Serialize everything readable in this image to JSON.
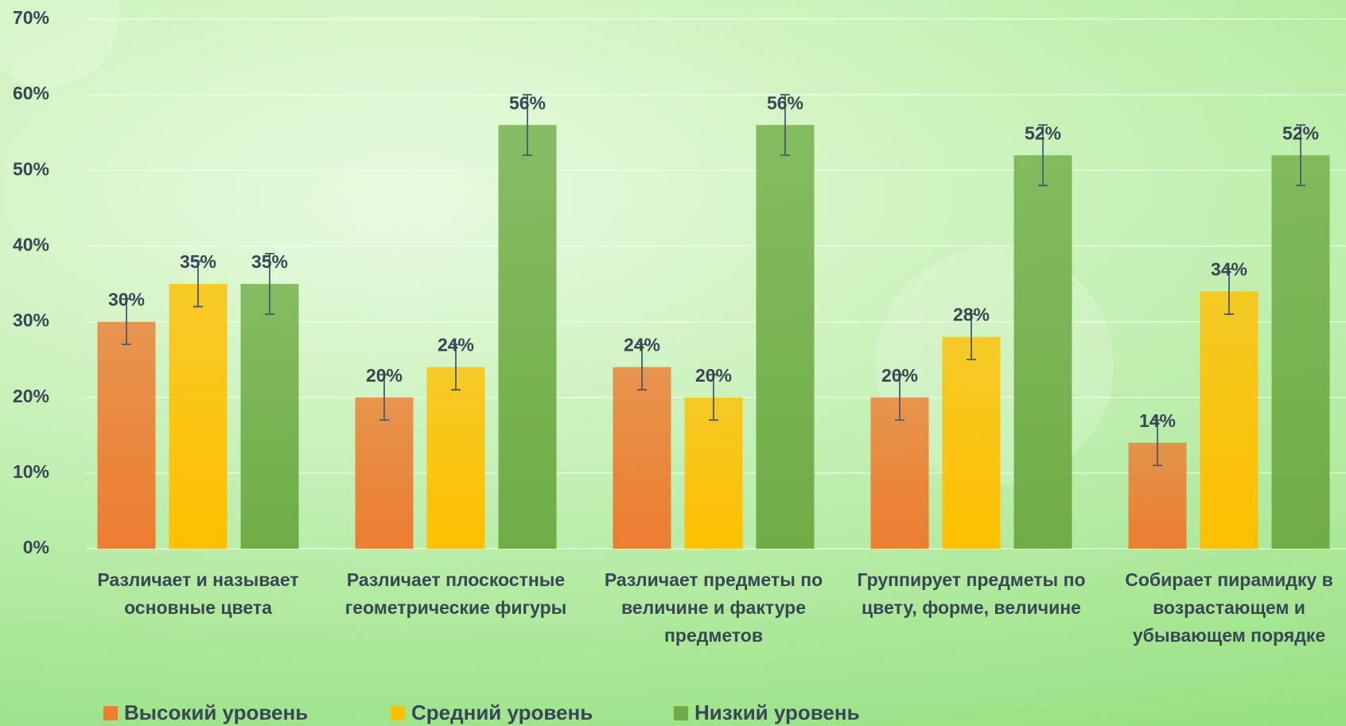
{
  "chart_data": {
    "type": "bar",
    "categories": [
      "Различает и называет основные цвета",
      "Различает плоскостные геометрические фигуры",
      "Различает предметы по величине и фактуре предметов",
      "Группирует предметы по цвету, форме, величине",
      "Собирает пирамидку в возрастающем и убывающем порядке"
    ],
    "series": [
      {
        "name": "Высокий уровень",
        "color": "#ed7d31",
        "values": [
          30,
          20,
          24,
          20,
          14
        ],
        "value_labels": [
          "30%",
          "20%",
          "24%",
          "20%",
          "14%"
        ],
        "errors": [
          3,
          3,
          3,
          3,
          3
        ]
      },
      {
        "name": "Средний уровень",
        "color": "#ffc000",
        "values": [
          35,
          24,
          20,
          28,
          34
        ],
        "value_labels": [
          "35%",
          "24%",
          "20%",
          "28%",
          "34%"
        ],
        "errors": [
          3,
          3,
          3,
          3,
          3
        ]
      },
      {
        "name": "Низкий уровень",
        "color": "#70ad47",
        "values": [
          35,
          56,
          56,
          52,
          52
        ],
        "value_labels": [
          "35%",
          "56%",
          "56%",
          "52%",
          "52%"
        ],
        "errors": [
          4,
          4,
          4,
          4,
          4
        ]
      }
    ],
    "ylim": [
      0,
      70
    ],
    "yticks": [
      {
        "value": 0,
        "label": "0%"
      },
      {
        "value": 10,
        "label": "10%"
      },
      {
        "value": 20,
        "label": "20%"
      },
      {
        "value": 30,
        "label": "30%"
      },
      {
        "value": 40,
        "label": "40%"
      },
      {
        "value": 50,
        "label": "50%"
      },
      {
        "value": 60,
        "label": "60%"
      },
      {
        "value": 70,
        "label": "70%"
      }
    ],
    "grid": true,
    "legend": "bottom"
  }
}
